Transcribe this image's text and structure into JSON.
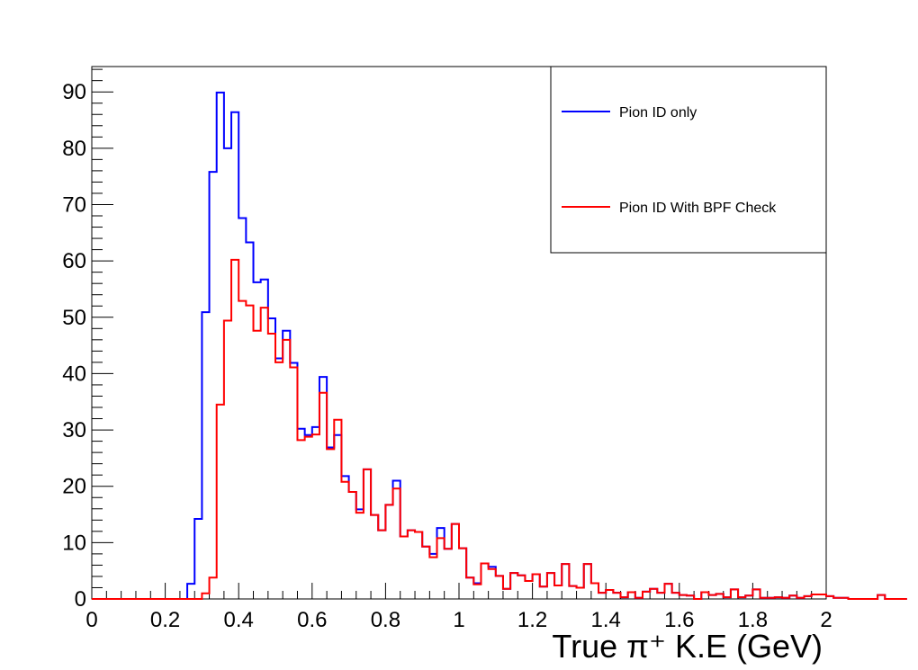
{
  "chart_data": {
    "type": "histogram",
    "title": "",
    "xlabel": "True π⁺ K.E (GeV)",
    "ylabel": "",
    "xlim": [
      0,
      2
    ],
    "ylim": [
      0,
      94.5
    ],
    "bin_width": 0.02,
    "x_ticks": [
      0,
      0.2,
      0.4,
      0.6,
      0.8,
      1,
      1.2,
      1.4,
      1.6,
      1.8,
      2
    ],
    "x_tick_labels": [
      "0",
      "0.2",
      "0.4",
      "0.6",
      "0.8",
      "1",
      "1.2",
      "1.4",
      "1.6",
      "1.8",
      "2"
    ],
    "y_ticks": [
      0,
      10,
      20,
      30,
      40,
      50,
      60,
      70,
      80,
      90
    ],
    "y_tick_labels": [
      "0",
      "10",
      "20",
      "30",
      "40",
      "50",
      "60",
      "70",
      "80",
      "90"
    ],
    "grid": false,
    "legend_position": "top-right",
    "series": [
      {
        "name": "Pion ID only",
        "color": "#0000ff",
        "values": [
          0,
          0,
          0,
          0,
          0,
          0,
          0,
          0,
          0,
          0,
          0,
          0,
          0,
          2.7,
          14.2,
          50.9,
          75.8,
          89.9,
          80.0,
          86.4,
          67.6,
          63.3,
          56.2,
          56.7,
          49.8,
          42.7,
          47.6,
          41.9,
          30.2,
          29.1,
          30.5,
          39.4,
          26.9,
          29.1,
          21.8,
          19.0,
          15.9,
          23.0,
          14.9,
          12.2,
          16.7,
          21.0,
          11.1,
          12.2,
          11.9,
          9.3,
          8.0,
          12.6,
          8.9,
          13.3,
          9.0,
          3.8,
          2.8,
          6.3,
          5.7,
          4.1,
          1.8,
          4.6,
          4.2,
          3.2,
          4.4,
          2.2,
          4.6,
          2.4,
          6.2,
          2.3,
          2.0,
          6.2,
          2.8,
          1.1,
          1.6,
          1.1,
          0.3,
          1.2,
          0.2,
          1.3,
          1.8,
          1.1,
          2.7,
          1.1,
          0.7,
          0.6,
          0,
          1.2,
          0.7,
          0.9,
          0.3,
          1.7,
          0.3,
          0.6,
          1.7,
          0.2,
          0.2,
          0.3,
          0.2,
          0.6,
          0.2,
          0.5,
          0.8,
          0.8,
          0.5,
          0.2,
          0.2,
          0,
          0,
          0,
          0,
          0.7,
          0,
          0,
          0
        ]
      },
      {
        "name": "Pion ID With BPF Check",
        "color": "#ff0000",
        "values": [
          0,
          0,
          0,
          0,
          0,
          0,
          0,
          0,
          0,
          0,
          0,
          0,
          0,
          0,
          0,
          1.0,
          3.8,
          34.5,
          49.4,
          60.2,
          52.9,
          52.1,
          47.6,
          51.7,
          47.1,
          42.0,
          46.0,
          41.1,
          28.2,
          28.8,
          29.2,
          36.6,
          26.6,
          31.8,
          20.8,
          19.0,
          15.3,
          23.0,
          14.9,
          12.2,
          16.7,
          19.6,
          11.1,
          12.2,
          11.9,
          9.3,
          7.4,
          10.8,
          8.9,
          13.3,
          9.0,
          3.8,
          2.6,
          6.3,
          5.3,
          4.1,
          1.8,
          4.6,
          4.2,
          3.2,
          4.4,
          2.2,
          4.6,
          2.4,
          6.2,
          2.3,
          2.0,
          6.2,
          2.8,
          1.1,
          1.6,
          1.1,
          0.3,
          1.2,
          0.2,
          1.3,
          1.8,
          1.1,
          2.7,
          1.1,
          0.7,
          0.6,
          0,
          1.2,
          0.7,
          0.9,
          0.3,
          1.7,
          0.3,
          0.6,
          1.7,
          0.2,
          0.2,
          0.3,
          0.2,
          0.6,
          0.2,
          0.5,
          0.8,
          0.8,
          0.5,
          0.2,
          0.2,
          0,
          0,
          0,
          0,
          0.7,
          0,
          0,
          0
        ]
      }
    ]
  }
}
